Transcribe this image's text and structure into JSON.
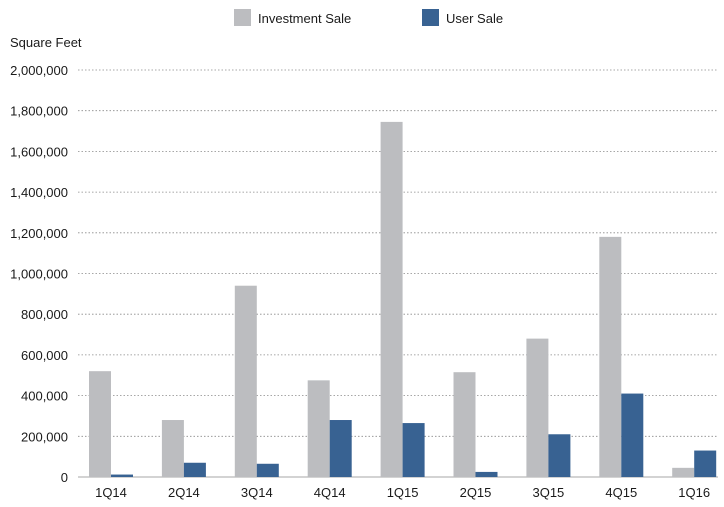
{
  "chart_data": {
    "type": "bar",
    "title": "",
    "xlabel": "",
    "ylabel": "Square Feet",
    "categories": [
      "1Q14",
      "2Q14",
      "3Q14",
      "4Q14",
      "1Q15",
      "2Q15",
      "3Q15",
      "4Q15",
      "1Q16"
    ],
    "series": [
      {
        "name": "Investment Sale",
        "color": "#bcbdc0",
        "values": [
          520000,
          280000,
          940000,
          475000,
          1745000,
          515000,
          680000,
          1180000,
          45000
        ]
      },
      {
        "name": "User Sale",
        "color": "#386292",
        "values": [
          12000,
          70000,
          65000,
          280000,
          265000,
          25000,
          210000,
          410000,
          130000
        ]
      }
    ],
    "ylim": [
      0,
      2000000
    ],
    "y_ticks": [
      0,
      200000,
      400000,
      600000,
      800000,
      1000000,
      1200000,
      1400000,
      1600000,
      1800000,
      2000000
    ],
    "y_tick_labels": [
      "0",
      "200,000",
      "400,000",
      "600,000",
      "800,000",
      "1,000,000",
      "1,200,000",
      "1,400,000",
      "1,600,000",
      "1,800,000",
      "2,000,000"
    ],
    "grid": true,
    "legend_position": "top-center"
  }
}
